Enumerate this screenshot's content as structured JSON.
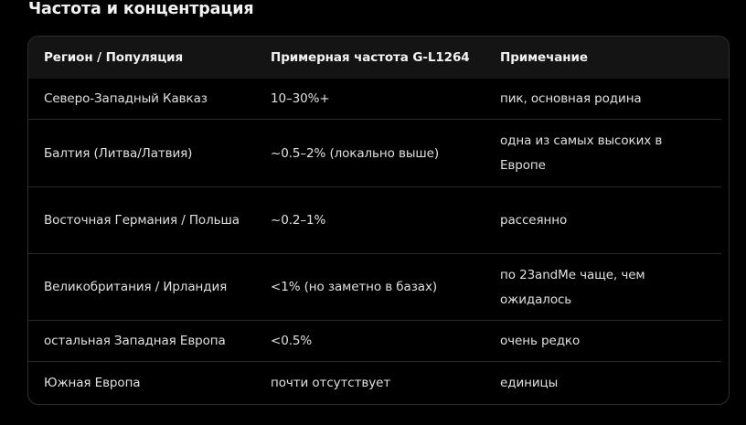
{
  "heading": "Частота и концентрация",
  "table": {
    "headers": [
      "Регион / Популяция",
      "Примерная частота G-L1264",
      "Примечание"
    ],
    "rows": [
      [
        "Северо-Западный Кавказ",
        "10–30%+",
        "пик, основная родина"
      ],
      [
        "Балтия (Литва/Латвия)",
        "~0.5–2% (локально выше)",
        "одна из самых высоких в Европе"
      ],
      [
        "Восточная Германия / Польша",
        "~0.2–1%",
        "рассеянно"
      ],
      [
        "Великобритания / Ирландия",
        "<1% (но заметно в базах)",
        "по 23andMe чаще, чем ожидалось"
      ],
      [
        "остальная Западная Европа",
        "<0.5%",
        "очень редко"
      ],
      [
        "Южная Европа",
        "почти отсутствует",
        "единицы"
      ]
    ]
  }
}
